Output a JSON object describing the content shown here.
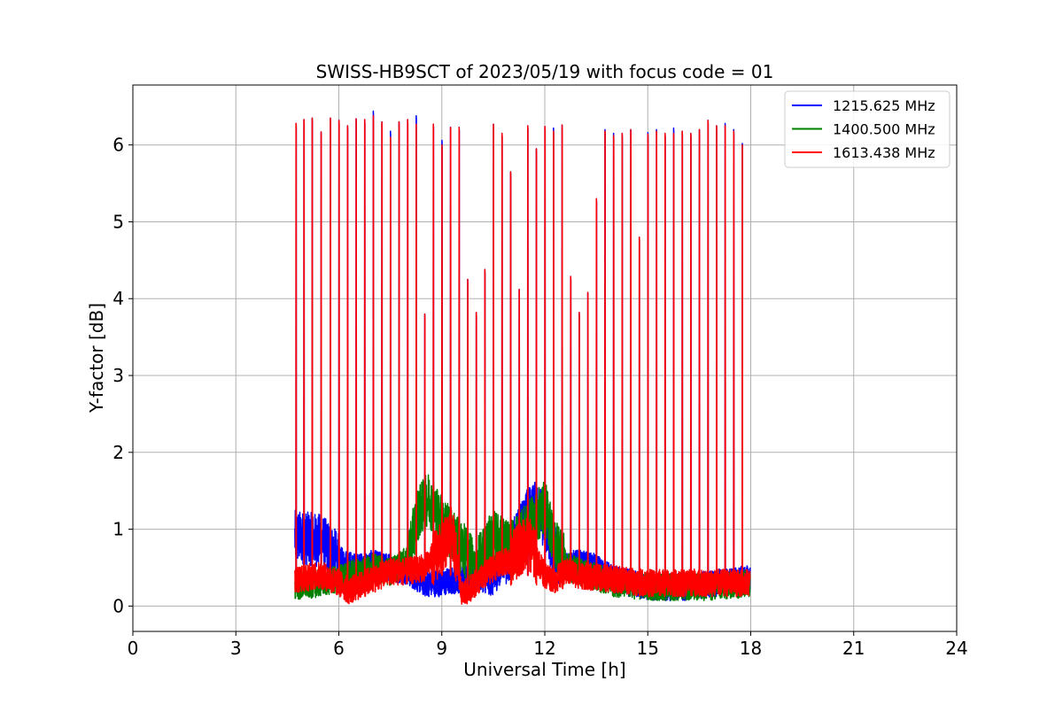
{
  "chart_data": {
    "type": "line",
    "title": "SWISS-HB9SCT of 2023/05/19 with focus code = 01",
    "xlabel": "Universal Time [h]",
    "ylabel": "Y-factor [dB]",
    "xlim": [
      0,
      24
    ],
    "ylim": [
      -0.33,
      6.78
    ],
    "xticks": [
      0,
      3,
      6,
      9,
      12,
      15,
      18,
      21,
      24
    ],
    "yticks": [
      0,
      1,
      2,
      3,
      4,
      5,
      6
    ],
    "grid": true,
    "legend_position": "top-right",
    "data_range_hours": [
      4.72,
      17.98
    ],
    "spikes": {
      "times": [
        4.75,
        4.98,
        5.22,
        5.48,
        5.75,
        6.0,
        6.25,
        6.5,
        6.75,
        7.0,
        7.25,
        7.5,
        7.75,
        8.0,
        8.25,
        8.5,
        8.75,
        9.0,
        9.25,
        9.5,
        9.75,
        10.0,
        10.25,
        10.5,
        10.75,
        11.0,
        11.25,
        11.5,
        11.75,
        12.0,
        12.25,
        12.5,
        12.75,
        13.0,
        13.25,
        13.5,
        13.75,
        14.0,
        14.25,
        14.5,
        14.75,
        15.0,
        15.25,
        15.5,
        15.75,
        16.0,
        16.25,
        16.5,
        16.75,
        17.0,
        17.25,
        17.5,
        17.75
      ],
      "peaks_red": [
        6.28,
        6.33,
        6.35,
        6.17,
        6.35,
        6.32,
        6.25,
        6.34,
        6.33,
        6.38,
        6.3,
        6.1,
        6.3,
        6.33,
        6.27,
        3.8,
        6.27,
        6.0,
        6.23,
        6.23,
        4.25,
        3.82,
        4.38,
        6.27,
        6.15,
        5.65,
        4.12,
        6.25,
        5.95,
        6.24,
        6.18,
        6.26,
        4.29,
        3.82,
        4.08,
        5.3,
        6.18,
        6.12,
        6.15,
        6.2,
        4.8,
        6.14,
        6.18,
        6.15,
        6.15,
        6.18,
        6.15,
        6.2,
        6.32,
        6.25,
        6.25,
        6.18,
        6.0
      ],
      "peaks_blue": [
        6.28,
        6.33,
        6.35,
        6.17,
        6.35,
        6.32,
        6.25,
        6.34,
        6.33,
        6.44,
        6.3,
        6.18,
        6.3,
        6.33,
        6.38,
        3.8,
        6.27,
        6.06,
        6.23,
        6.23,
        4.25,
        3.82,
        4.38,
        6.27,
        6.15,
        5.65,
        4.12,
        6.25,
        5.95,
        6.24,
        6.22,
        6.26,
        4.29,
        3.82,
        4.08,
        5.3,
        6.2,
        6.15,
        6.15,
        6.2,
        4.8,
        6.16,
        6.2,
        6.15,
        6.22,
        6.18,
        6.15,
        6.2,
        6.32,
        6.25,
        6.28,
        6.2,
        6.02
      ]
    },
    "series": [
      {
        "name": "1215.625 MHz",
        "color": "#0000ff",
        "baseline_profile": [
          [
            4.72,
            0.9
          ],
          [
            5.5,
            0.85
          ],
          [
            6.0,
            0.6
          ],
          [
            6.5,
            0.5
          ],
          [
            7.0,
            0.55
          ],
          [
            7.5,
            0.5
          ],
          [
            8.0,
            0.45
          ],
          [
            8.5,
            0.3
          ],
          [
            9.0,
            0.3
          ],
          [
            9.5,
            0.35
          ],
          [
            10.0,
            0.4
          ],
          [
            10.5,
            0.3
          ],
          [
            11.0,
            0.7
          ],
          [
            11.5,
            1.2
          ],
          [
            11.8,
            1.3
          ],
          [
            12.2,
            0.8
          ],
          [
            12.5,
            0.55
          ],
          [
            13.0,
            0.55
          ],
          [
            13.5,
            0.5
          ],
          [
            14.0,
            0.35
          ],
          [
            15.0,
            0.25
          ],
          [
            16.0,
            0.25
          ],
          [
            17.0,
            0.3
          ],
          [
            17.98,
            0.35
          ]
        ]
      },
      {
        "name": "1400.500 MHz",
        "color": "#008000",
        "baseline_profile": [
          [
            4.72,
            0.25
          ],
          [
            5.5,
            0.3
          ],
          [
            6.0,
            0.35
          ],
          [
            6.5,
            0.45
          ],
          [
            7.0,
            0.5
          ],
          [
            7.5,
            0.45
          ],
          [
            8.0,
            0.6
          ],
          [
            8.3,
            1.2
          ],
          [
            8.6,
            1.4
          ],
          [
            9.0,
            1.1
          ],
          [
            9.5,
            0.8
          ],
          [
            10.0,
            0.55
          ],
          [
            10.5,
            0.9
          ],
          [
            11.0,
            0.75
          ],
          [
            11.5,
            1.0
          ],
          [
            12.0,
            1.3
          ],
          [
            12.3,
            0.8
          ],
          [
            12.7,
            0.5
          ],
          [
            13.0,
            0.45
          ],
          [
            14.0,
            0.3
          ],
          [
            15.0,
            0.25
          ],
          [
            16.0,
            0.25
          ],
          [
            17.0,
            0.25
          ],
          [
            17.98,
            0.3
          ]
        ]
      },
      {
        "name": "1613.438 MHz",
        "color": "#ff0000",
        "baseline_profile": [
          [
            4.72,
            0.35
          ],
          [
            5.5,
            0.4
          ],
          [
            6.0,
            0.3
          ],
          [
            6.3,
            0.2
          ],
          [
            7.0,
            0.35
          ],
          [
            7.5,
            0.45
          ],
          [
            8.0,
            0.45
          ],
          [
            8.5,
            0.5
          ],
          [
            9.0,
            0.75
          ],
          [
            9.3,
            0.95
          ],
          [
            9.6,
            0.15
          ],
          [
            10.0,
            0.3
          ],
          [
            10.5,
            0.5
          ],
          [
            11.0,
            0.6
          ],
          [
            11.5,
            0.85
          ],
          [
            12.0,
            0.4
          ],
          [
            12.3,
            0.35
          ],
          [
            12.7,
            0.45
          ],
          [
            13.0,
            0.4
          ],
          [
            14.0,
            0.35
          ],
          [
            15.0,
            0.3
          ],
          [
            16.0,
            0.3
          ],
          [
            17.0,
            0.3
          ],
          [
            17.98,
            0.3
          ]
        ]
      }
    ]
  }
}
